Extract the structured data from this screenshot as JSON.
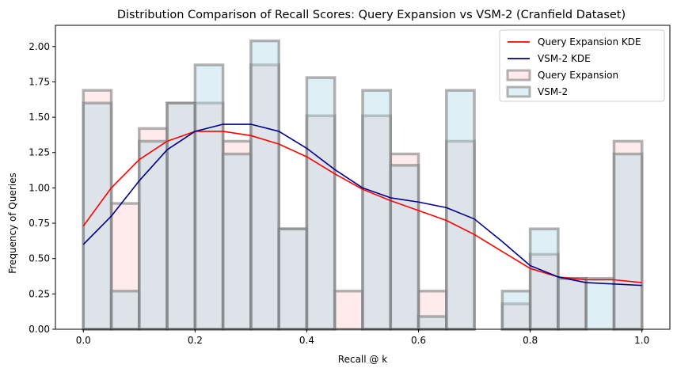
{
  "chart_data": {
    "type": "histogram",
    "title": "Distribution Comparison of Recall Scores: Query Expansion vs VSM-2 (Cranfield Dataset)",
    "xlabel": "Recall @ k",
    "ylabel": "Frequency of Queries",
    "xlim": [
      -0.05,
      1.05
    ],
    "ylim": [
      0,
      2.15
    ],
    "xticks": [
      0.0,
      0.2,
      0.4,
      0.6,
      0.8,
      1.0
    ],
    "xtick_labels": [
      "0.0",
      "0.2",
      "0.4",
      "0.6",
      "0.8",
      "1.0"
    ],
    "yticks": [
      0.0,
      0.25,
      0.5,
      0.75,
      1.0,
      1.25,
      1.5,
      1.75,
      2.0
    ],
    "ytick_labels": [
      "0.00",
      "0.25",
      "0.50",
      "0.75",
      "1.00",
      "1.25",
      "1.50",
      "1.75",
      "2.00"
    ],
    "bin_edges": [
      0.0,
      0.05,
      0.1,
      0.15,
      0.2,
      0.25,
      0.3,
      0.35,
      0.4,
      0.45,
      0.5,
      0.55,
      0.6,
      0.65,
      0.7,
      0.75,
      0.8,
      0.85,
      0.9,
      0.95,
      1.0
    ],
    "series": [
      {
        "name": "Query Expansion",
        "kind": "hist",
        "fill": "#ffcccc",
        "edge": "#808080",
        "values": [
          1.69,
          0.89,
          1.42,
          1.6,
          1.6,
          1.33,
          1.87,
          0.71,
          1.51,
          0.27,
          1.51,
          1.24,
          0.27,
          1.33,
          0.0,
          0.18,
          0.53,
          0.36,
          0.0,
          1.33
        ]
      },
      {
        "name": "VSM-2",
        "kind": "hist",
        "fill": "#add8e6",
        "edge": "#808080",
        "values": [
          1.6,
          0.27,
          1.33,
          1.6,
          1.87,
          1.24,
          2.04,
          0.71,
          1.78,
          0.0,
          1.69,
          1.16,
          0.09,
          1.69,
          0.0,
          0.27,
          0.71,
          0.36,
          0.36,
          1.24
        ]
      },
      {
        "name": "Query Expansion KDE",
        "kind": "line",
        "color": "#ff0000",
        "x": [
          0.0,
          0.05,
          0.1,
          0.15,
          0.2,
          0.25,
          0.3,
          0.35,
          0.4,
          0.45,
          0.5,
          0.55,
          0.6,
          0.65,
          0.7,
          0.75,
          0.8,
          0.85,
          0.9,
          0.95,
          1.0
        ],
        "y": [
          0.73,
          1.0,
          1.2,
          1.33,
          1.4,
          1.4,
          1.37,
          1.31,
          1.22,
          1.1,
          0.99,
          0.91,
          0.84,
          0.77,
          0.67,
          0.55,
          0.43,
          0.37,
          0.35,
          0.35,
          0.33
        ]
      },
      {
        "name": "VSM-2 KDE",
        "kind": "line",
        "color": "#00008b",
        "x": [
          0.0,
          0.05,
          0.1,
          0.15,
          0.2,
          0.25,
          0.3,
          0.35,
          0.4,
          0.45,
          0.5,
          0.55,
          0.6,
          0.65,
          0.7,
          0.75,
          0.8,
          0.85,
          0.9,
          0.95,
          1.0
        ],
        "y": [
          0.6,
          0.8,
          1.05,
          1.27,
          1.4,
          1.45,
          1.45,
          1.4,
          1.28,
          1.13,
          1.0,
          0.93,
          0.9,
          0.86,
          0.78,
          0.62,
          0.45,
          0.37,
          0.33,
          0.32,
          0.31
        ]
      }
    ],
    "legend": {
      "position": "top-right",
      "entries": [
        "Query Expansion KDE",
        "VSM-2 KDE",
        "Query Expansion",
        "VSM-2"
      ]
    }
  }
}
